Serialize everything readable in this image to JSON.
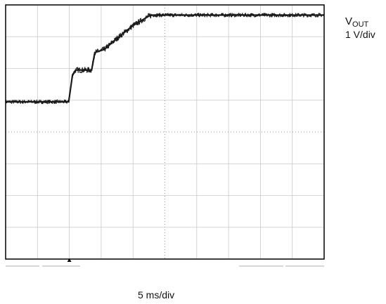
{
  "channel": {
    "name": "V",
    "subscript": "OUT",
    "scale": "1 V/div"
  },
  "timebase": {
    "scale": "5 ms/div"
  },
  "colors": {
    "trace": "#1a1a1a",
    "frame": "#000000",
    "grid": "#c8c8c8",
    "background": "#ffffff"
  },
  "chart_data": {
    "type": "line",
    "title": "",
    "xlabel": "5 ms/div",
    "ylabel": "V_OUT 1 V/div",
    "x_unit": "ms",
    "y_unit": "V",
    "xlim": [
      0,
      50
    ],
    "ylim": [
      -4,
      4
    ],
    "grid": true,
    "trigger_marker_x": 10,
    "series": [
      {
        "name": "V_OUT",
        "x": [
          0,
          9.9,
          10.5,
          11.0,
          12.0,
          13.5,
          14.0,
          15.5,
          17.5,
          20.0,
          22.5,
          23.0,
          50
        ],
        "y": [
          0.95,
          0.95,
          1.8,
          1.95,
          1.95,
          1.95,
          2.5,
          2.6,
          2.95,
          3.35,
          3.65,
          3.68,
          3.68
        ]
      }
    ]
  }
}
